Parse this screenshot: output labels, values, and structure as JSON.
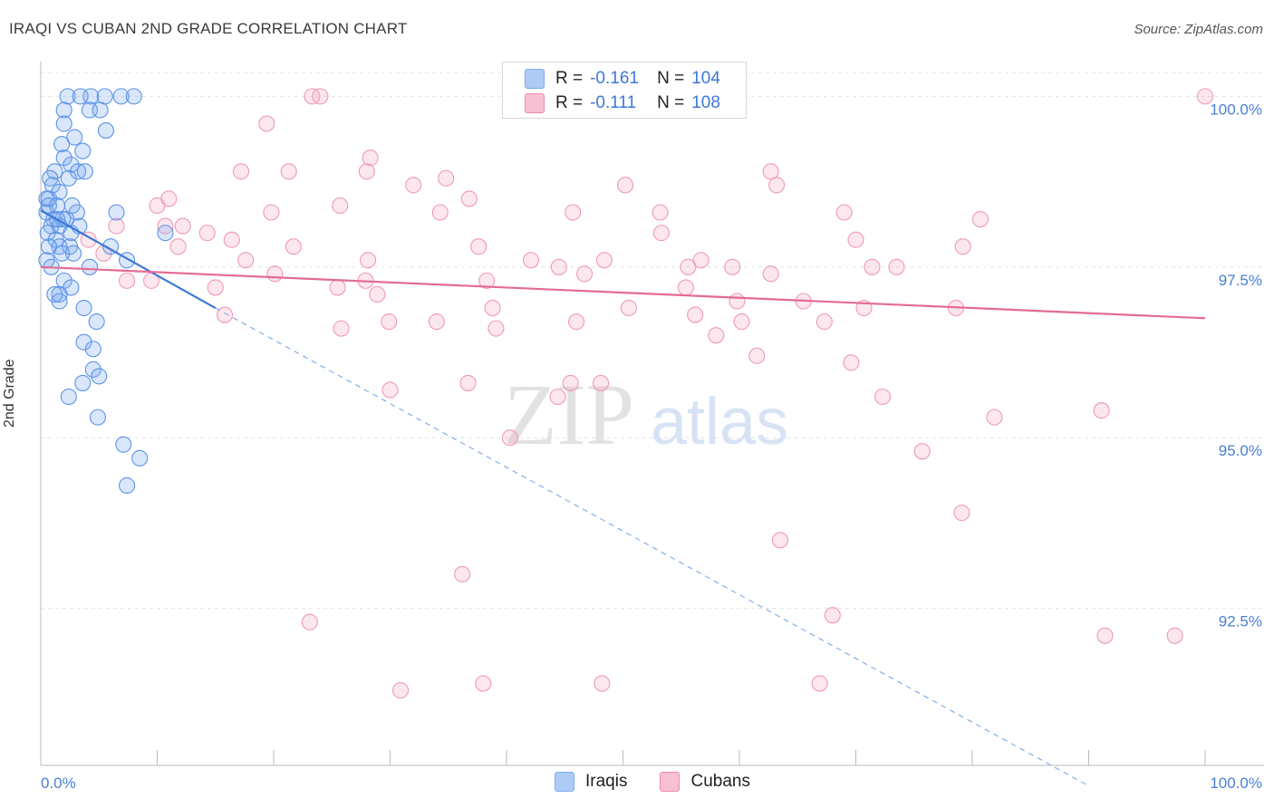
{
  "header": {
    "title": "IRAQI VS CUBAN 2ND GRADE CORRELATION CHART",
    "source": "Source: ZipAtlas.com"
  },
  "watermark": {
    "zip": "ZIP",
    "atlas": "atlas"
  },
  "legend": {
    "rows": [
      {
        "r_label": "R =",
        "r_value": "-0.161",
        "n_label": "N =",
        "n_value": "104",
        "color": "#7aaaf0",
        "fill": "#aecbf5"
      },
      {
        "r_label": "R =",
        "r_value": "-0.111",
        "n_label": "N =",
        "n_value": "108",
        "color": "#f08aa8",
        "fill": "#f7c1d2"
      }
    ]
  },
  "bottom_legend": [
    "Iraqis",
    "Cubans"
  ],
  "chart_data": {
    "type": "scatter",
    "title": "IRAQI VS CUBAN 2ND GRADE CORRELATION CHART",
    "xlabel": "",
    "ylabel": "2nd Grade",
    "xlim": [
      0,
      100
    ],
    "ylim": [
      90.2,
      100.35
    ],
    "x_tick_labels": [
      "0.0%",
      "100.0%"
    ],
    "y_ticks": [
      92.5,
      95.0,
      97.5,
      100.0
    ],
    "y_tick_labels": [
      "92.5%",
      "95.0%",
      "97.5%",
      "100.0%"
    ],
    "grid": true,
    "colors": {
      "iraqis": "#3b78d8",
      "cubans": "#e46a94"
    },
    "series": [
      {
        "name": "Iraqis",
        "trend": {
          "x0": 0.0,
          "y0": 98.33,
          "x1": 15.0,
          "y1": 96.9,
          "dashed_to_x": 90.0,
          "dashed_to_y": 89.9
        },
        "points": [
          [
            2.3,
            100
          ],
          [
            4.3,
            100
          ],
          [
            3.4,
            100
          ],
          [
            5.5,
            100
          ],
          [
            6.9,
            100
          ],
          [
            8.0,
            100
          ],
          [
            2.0,
            99.8
          ],
          [
            4.2,
            99.8
          ],
          [
            5.1,
            99.8
          ],
          [
            2.0,
            99.6
          ],
          [
            5.6,
            99.5
          ],
          [
            2.9,
            99.4
          ],
          [
            1.8,
            99.3
          ],
          [
            3.6,
            99.2
          ],
          [
            2.0,
            99.1
          ],
          [
            2.6,
            99.0
          ],
          [
            3.2,
            98.9
          ],
          [
            3.8,
            98.9
          ],
          [
            1.2,
            98.9
          ],
          [
            0.8,
            98.8
          ],
          [
            2.4,
            98.8
          ],
          [
            1.0,
            98.7
          ],
          [
            1.6,
            98.6
          ],
          [
            0.7,
            98.5
          ],
          [
            0.5,
            98.5
          ],
          [
            2.7,
            98.4
          ],
          [
            0.7,
            98.4
          ],
          [
            1.4,
            98.4
          ],
          [
            3.1,
            98.3
          ],
          [
            6.5,
            98.3
          ],
          [
            0.5,
            98.3
          ],
          [
            1.1,
            98.2
          ],
          [
            2.2,
            98.2
          ],
          [
            1.9,
            98.2
          ],
          [
            3.3,
            98.1
          ],
          [
            0.9,
            98.1
          ],
          [
            1.6,
            98.1
          ],
          [
            0.6,
            98.0
          ],
          [
            2.6,
            98.0
          ],
          [
            1.3,
            97.9
          ],
          [
            2.5,
            97.8
          ],
          [
            6.0,
            97.8
          ],
          [
            1.6,
            97.8
          ],
          [
            0.7,
            97.8
          ],
          [
            2.8,
            97.7
          ],
          [
            1.8,
            97.7
          ],
          [
            7.4,
            97.6
          ],
          [
            0.5,
            97.6
          ],
          [
            4.2,
            97.5
          ],
          [
            0.9,
            97.5
          ],
          [
            2.0,
            97.3
          ],
          [
            2.6,
            97.2
          ],
          [
            1.6,
            97.1
          ],
          [
            1.2,
            97.1
          ],
          [
            1.6,
            97.0
          ],
          [
            3.7,
            96.9
          ],
          [
            4.8,
            96.7
          ],
          [
            3.7,
            96.4
          ],
          [
            4.5,
            96.3
          ],
          [
            4.5,
            96.0
          ],
          [
            5.0,
            95.9
          ],
          [
            3.6,
            95.8
          ],
          [
            2.4,
            95.6
          ],
          [
            4.9,
            95.3
          ],
          [
            7.1,
            94.9
          ],
          [
            8.5,
            94.7
          ],
          [
            7.4,
            94.3
          ],
          [
            10.7,
            98.0
          ],
          [
            1.4,
            98.2
          ]
        ]
      },
      {
        "name": "Cubans",
        "trend": {
          "x0": 0.0,
          "y0": 97.5,
          "x1": 100.0,
          "y1": 96.75
        },
        "points": [
          [
            23.3,
            100
          ],
          [
            24.0,
            100
          ],
          [
            100.0,
            100
          ],
          [
            19.4,
            99.6
          ],
          [
            28.3,
            99.1
          ],
          [
            28.0,
            98.9
          ],
          [
            17.2,
            98.9
          ],
          [
            21.3,
            98.9
          ],
          [
            62.7,
            98.9
          ],
          [
            34.8,
            98.8
          ],
          [
            32.0,
            98.7
          ],
          [
            50.2,
            98.7
          ],
          [
            63.2,
            98.7
          ],
          [
            11.0,
            98.5
          ],
          [
            36.8,
            98.5
          ],
          [
            10.0,
            98.4
          ],
          [
            19.8,
            98.3
          ],
          [
            25.7,
            98.4
          ],
          [
            34.3,
            98.3
          ],
          [
            45.7,
            98.3
          ],
          [
            53.2,
            98.3
          ],
          [
            69.0,
            98.3
          ],
          [
            10.7,
            98.1
          ],
          [
            80.7,
            98.2
          ],
          [
            6.5,
            98.1
          ],
          [
            12.2,
            98.1
          ],
          [
            14.3,
            98.0
          ],
          [
            4.1,
            97.9
          ],
          [
            16.4,
            97.9
          ],
          [
            53.3,
            98.0
          ],
          [
            70.0,
            97.9
          ],
          [
            79.2,
            97.8
          ],
          [
            11.8,
            97.8
          ],
          [
            21.7,
            97.8
          ],
          [
            42.1,
            97.6
          ],
          [
            37.6,
            97.8
          ],
          [
            5.4,
            97.7
          ],
          [
            17.6,
            97.6
          ],
          [
            28.1,
            97.6
          ],
          [
            44.5,
            97.5
          ],
          [
            48.4,
            97.6
          ],
          [
            55.6,
            97.5
          ],
          [
            56.7,
            97.6
          ],
          [
            59.4,
            97.5
          ],
          [
            62.7,
            97.4
          ],
          [
            71.4,
            97.5
          ],
          [
            73.5,
            97.5
          ],
          [
            20.1,
            97.4
          ],
          [
            27.9,
            97.3
          ],
          [
            38.3,
            97.3
          ],
          [
            46.7,
            97.4
          ],
          [
            7.4,
            97.3
          ],
          [
            15.0,
            97.2
          ],
          [
            9.5,
            97.3
          ],
          [
            55.4,
            97.2
          ],
          [
            59.8,
            97.0
          ],
          [
            65.5,
            97.0
          ],
          [
            70.7,
            96.9
          ],
          [
            78.6,
            96.9
          ],
          [
            25.5,
            97.2
          ],
          [
            28.9,
            97.1
          ],
          [
            38.8,
            96.9
          ],
          [
            50.5,
            96.9
          ],
          [
            56.2,
            96.8
          ],
          [
            60.2,
            96.7
          ],
          [
            67.3,
            96.7
          ],
          [
            34.0,
            96.7
          ],
          [
            15.8,
            96.8
          ],
          [
            25.8,
            96.6
          ],
          [
            29.9,
            96.7
          ],
          [
            39.1,
            96.6
          ],
          [
            46.0,
            96.7
          ],
          [
            58.0,
            96.5
          ],
          [
            61.5,
            96.2
          ],
          [
            69.6,
            96.1
          ],
          [
            48.1,
            95.8
          ],
          [
            30.0,
            95.7
          ],
          [
            36.7,
            95.8
          ],
          [
            45.5,
            95.8
          ],
          [
            72.3,
            95.6
          ],
          [
            81.9,
            95.3
          ],
          [
            75.7,
            94.8
          ],
          [
            91.1,
            95.4
          ],
          [
            79.1,
            93.9
          ],
          [
            44.4,
            95.6
          ],
          [
            66.9,
            91.4
          ],
          [
            48.2,
            91.4
          ],
          [
            36.2,
            93.0
          ],
          [
            40.3,
            95.0
          ],
          [
            63.5,
            93.5
          ],
          [
            68.0,
            92.4
          ],
          [
            91.4,
            92.1
          ],
          [
            97.4,
            92.1
          ],
          [
            30.9,
            91.3
          ],
          [
            38.0,
            91.4
          ],
          [
            23.1,
            92.3
          ]
        ]
      }
    ]
  }
}
